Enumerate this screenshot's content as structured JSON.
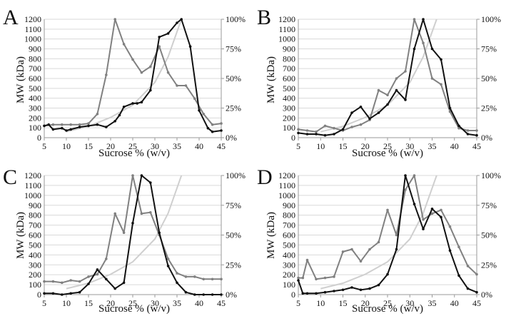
{
  "colors": {
    "mw_curve": "#cfcfcf",
    "series_gray": "#808080",
    "series_black": "#111111",
    "grid": "#d9d9d9"
  },
  "chart_data": [
    {
      "type": "line",
      "panel_label": "A",
      "xlabel": "Sucrose % (w/v)",
      "ylabel": "MW (kDa)",
      "xlim": [
        5,
        45
      ],
      "ylim": [
        0,
        1200
      ],
      "y2lim": [
        0,
        100
      ],
      "x_ticks": [
        "5",
        "10",
        "15",
        "20",
        "25",
        "30",
        "35",
        "40",
        "45"
      ],
      "y_ticks": [
        "0",
        "100",
        "200",
        "300",
        "400",
        "500",
        "600",
        "700",
        "800",
        "900",
        "1000",
        "1100",
        "1200"
      ],
      "y2_ticks": [
        "0%",
        "25%",
        "50%",
        "75%",
        "100%"
      ],
      "grid": true,
      "mw_curve": {
        "x": [
          10,
          15,
          20,
          25,
          30,
          33,
          36
        ],
        "y": [
          60,
          115,
          205,
          330,
          560,
          820,
          1200
        ]
      },
      "series": [
        {
          "axis": "right",
          "x": [
            5,
            7,
            9,
            11,
            13,
            15,
            17,
            19,
            21,
            23,
            25,
            27,
            29,
            31,
            33,
            35,
            37,
            39,
            41,
            43,
            45
          ],
          "values": [
            10,
            11,
            11,
            11,
            11,
            12,
            20,
            53,
            100,
            79,
            66,
            55,
            60,
            77,
            55,
            44,
            44,
            33,
            20,
            11,
            12
          ]
        },
        {
          "axis": "right",
          "x": [
            5,
            6,
            7,
            9,
            10,
            11,
            13,
            15,
            17,
            19,
            21,
            22,
            23,
            25,
            26,
            27,
            29,
            31,
            33,
            35,
            36,
            38,
            40,
            42,
            43,
            45
          ],
          "values": [
            10,
            11,
            7,
            8,
            6,
            7,
            9,
            10,
            11,
            9,
            14,
            19,
            26,
            29,
            29,
            30,
            40,
            85,
            88,
            97,
            100,
            77,
            23,
            8,
            5,
            6
          ]
        }
      ]
    },
    {
      "type": "line",
      "panel_label": "B",
      "xlabel": "Sucrose % (w/v)",
      "ylabel": "MW (kDa)",
      "xlim": [
        5,
        45
      ],
      "ylim": [
        0,
        1200
      ],
      "y2lim": [
        0,
        100
      ],
      "x_ticks": [
        "5",
        "10",
        "15",
        "20",
        "25",
        "30",
        "35",
        "40",
        "45"
      ],
      "y_ticks": [
        "0",
        "100",
        "200",
        "300",
        "400",
        "500",
        "600",
        "700",
        "800",
        "900",
        "1000",
        "1100",
        "1200"
      ],
      "y2_ticks": [
        "0%",
        "25%",
        "50%",
        "75%",
        "100%"
      ],
      "grid": true,
      "mw_curve": {
        "x": [
          10,
          15,
          20,
          25,
          30,
          33,
          36
        ],
        "y": [
          60,
          115,
          205,
          330,
          560,
          820,
          1200
        ]
      },
      "series": [
        {
          "axis": "right",
          "x": [
            5,
            7,
            9,
            11,
            13,
            15,
            17,
            19,
            21,
            23,
            25,
            27,
            29,
            31,
            33,
            35,
            37,
            39,
            41,
            43,
            45
          ],
          "values": [
            7,
            6,
            5,
            10,
            8,
            6,
            9,
            11,
            15,
            40,
            36,
            50,
            56,
            100,
            80,
            50,
            45,
            22,
            8,
            6,
            6
          ]
        },
        {
          "axis": "right",
          "x": [
            5,
            7,
            9,
            11,
            13,
            15,
            17,
            19,
            21,
            23,
            25,
            27,
            29,
            31,
            33,
            35,
            37,
            39,
            41,
            43,
            45
          ],
          "values": [
            4,
            3,
            3,
            2,
            3,
            7,
            21,
            26,
            16,
            21,
            28,
            40,
            32,
            75,
            100,
            75,
            66,
            25,
            10,
            3,
            2
          ]
        }
      ]
    },
    {
      "type": "line",
      "panel_label": "C",
      "xlabel": "Sucrose % (w/v)",
      "ylabel": "MW (kDa)",
      "xlim": [
        5,
        45
      ],
      "ylim": [
        0,
        1200
      ],
      "y2lim": [
        0,
        100
      ],
      "x_ticks": [
        "5",
        "10",
        "15",
        "20",
        "25",
        "30",
        "35",
        "40",
        "45"
      ],
      "y_ticks": [
        "0",
        "100",
        "200",
        "300",
        "400",
        "500",
        "600",
        "700",
        "800",
        "900",
        "1000",
        "1100",
        "1200"
      ],
      "y2_ticks": [
        "0%",
        "25%",
        "50%",
        "75%",
        "100%"
      ],
      "grid": true,
      "mw_curve": {
        "x": [
          10,
          15,
          20,
          25,
          30,
          33,
          36
        ],
        "y": [
          60,
          115,
          205,
          330,
          560,
          820,
          1200
        ]
      },
      "series": [
        {
          "axis": "right",
          "x": [
            5,
            7,
            9,
            11,
            13,
            15,
            17,
            19,
            21,
            23,
            25,
            27,
            29,
            31,
            33,
            35,
            37,
            39,
            41,
            43,
            45
          ],
          "values": [
            11,
            11,
            10,
            12,
            11,
            15,
            17,
            30,
            68,
            52,
            100,
            68,
            69,
            50,
            30,
            18,
            15,
            15,
            13,
            13,
            13
          ]
        },
        {
          "axis": "right",
          "x": [
            5,
            7,
            9,
            11,
            13,
            15,
            17,
            19,
            21,
            23,
            25,
            27,
            29,
            31,
            33,
            35,
            37,
            39,
            41,
            43,
            45
          ],
          "values": [
            1,
            1,
            0,
            1,
            2,
            9,
            21,
            13,
            5,
            10,
            60,
            100,
            94,
            52,
            24,
            10,
            2,
            0,
            0,
            0,
            0
          ]
        }
      ]
    },
    {
      "type": "line",
      "panel_label": "D",
      "xlabel": "Sucrose % (w/v)",
      "ylabel": "MW (kDa)",
      "xlim": [
        5,
        45
      ],
      "ylim": [
        0,
        1200
      ],
      "y2lim": [
        0,
        100
      ],
      "x_ticks": [
        "5",
        "10",
        "15",
        "20",
        "25",
        "30",
        "35",
        "40",
        "45"
      ],
      "y_ticks": [
        "0",
        "100",
        "200",
        "300",
        "400",
        "500",
        "600",
        "700",
        "800",
        "900",
        "1000",
        "1100",
        "1200"
      ],
      "y2_ticks": [
        "0%",
        "25%",
        "50%",
        "75%",
        "100%"
      ],
      "grid": true,
      "mw_curve": {
        "x": [
          10,
          15,
          20,
          25,
          30,
          33,
          36
        ],
        "y": [
          60,
          115,
          205,
          330,
          560,
          820,
          1200
        ]
      },
      "series": [
        {
          "axis": "right",
          "x": [
            5,
            6,
            7,
            9,
            11,
            13,
            15,
            17,
            19,
            21,
            23,
            25,
            27,
            29,
            31,
            33,
            35,
            37,
            39,
            41,
            43,
            45
          ],
          "values": [
            14,
            14,
            29,
            13,
            14,
            15,
            36,
            38,
            28,
            38,
            44,
            71,
            50,
            88,
            100,
            63,
            68,
            71,
            57,
            40,
            24,
            17
          ]
        },
        {
          "axis": "right",
          "x": [
            5,
            6,
            7,
            9,
            11,
            13,
            15,
            17,
            19,
            21,
            23,
            25,
            27,
            29,
            31,
            33,
            35,
            37,
            39,
            41,
            43,
            45
          ],
          "values": [
            12,
            1,
            1,
            1,
            2,
            3,
            4,
            6,
            4,
            5,
            8,
            17,
            38,
            100,
            76,
            55,
            72,
            65,
            37,
            16,
            5,
            2
          ]
        }
      ]
    }
  ]
}
